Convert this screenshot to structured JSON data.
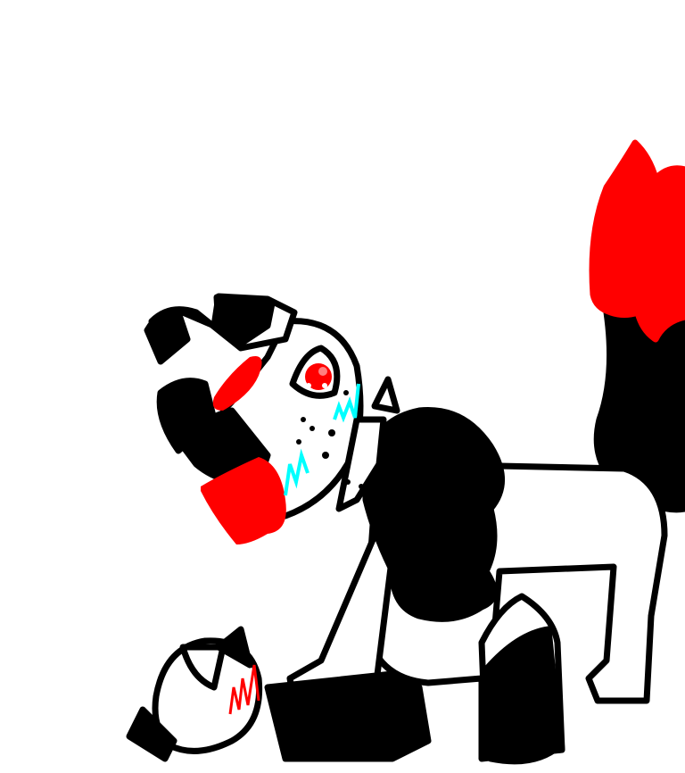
{
  "canvas": {
    "background": "#ffffff"
  },
  "colors": {
    "outline": "#000000",
    "fill": "#ffffff",
    "blood": "#ff0000",
    "tears": "#00ffff",
    "eye_highlight": "#ff8080"
  }
}
